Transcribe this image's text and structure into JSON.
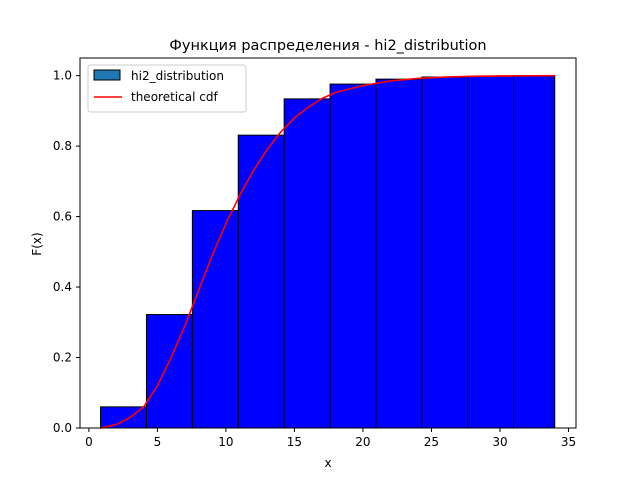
{
  "chart_data": {
    "type": "bar",
    "title": "Функция распределения - hi2_distribution",
    "xlabel": "x",
    "ylabel": "F(x)",
    "xlim": [
      -0.65,
      35.55
    ],
    "ylim": [
      0,
      1.05
    ],
    "xticks": [
      0,
      5,
      10,
      15,
      20,
      25,
      30,
      35
    ],
    "yticks": [
      0.0,
      0.2,
      0.4,
      0.6,
      0.8,
      1.0
    ],
    "grid": false,
    "legend_position": "top-left",
    "series": [
      {
        "name": "hi2_distribution",
        "kind": "histogram",
        "fill": "#0000ff",
        "legend_swatch": "#1f77b4",
        "edge": "#000000",
        "bins": [
          {
            "x0": 0.85,
            "x1": 4.2,
            "value": 0.06
          },
          {
            "x0": 4.2,
            "x1": 7.55,
            "value": 0.322
          },
          {
            "x0": 7.55,
            "x1": 10.9,
            "value": 0.617
          },
          {
            "x0": 10.9,
            "x1": 14.25,
            "value": 0.831
          },
          {
            "x0": 14.25,
            "x1": 17.6,
            "value": 0.934
          },
          {
            "x0": 17.6,
            "x1": 20.95,
            "value": 0.976
          },
          {
            "x0": 20.95,
            "x1": 24.3,
            "value": 0.99
          },
          {
            "x0": 24.3,
            "x1": 27.65,
            "value": 0.996
          },
          {
            "x0": 27.65,
            "x1": 31.0,
            "value": 0.998
          },
          {
            "x0": 31.0,
            "x1": 34.0,
            "value": 0.999
          }
        ]
      },
      {
        "name": "theoretical cdf",
        "kind": "line",
        "color": "#ff0000",
        "x": [
          0.85,
          2,
          3,
          4,
          5,
          6,
          7,
          8,
          9,
          10,
          11,
          12,
          13,
          14,
          15,
          16,
          17,
          18,
          20,
          22,
          24,
          26,
          28,
          30,
          32,
          34
        ],
        "y": [
          0.0,
          0.01,
          0.03,
          0.06,
          0.12,
          0.2,
          0.29,
          0.39,
          0.49,
          0.58,
          0.66,
          0.73,
          0.79,
          0.84,
          0.88,
          0.91,
          0.935,
          0.952,
          0.972,
          0.985,
          0.992,
          0.996,
          0.998,
          0.999,
          0.9995,
          1.0
        ]
      }
    ]
  }
}
